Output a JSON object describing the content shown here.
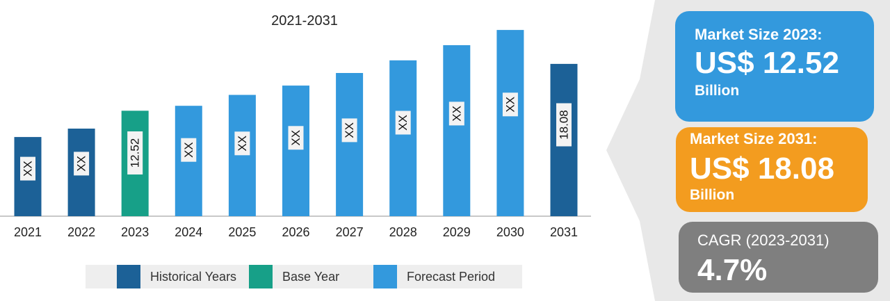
{
  "chart_data": {
    "type": "bar",
    "title": "2021-2031",
    "categories": [
      "2021",
      "2022",
      "2023",
      "2024",
      "2025",
      "2026",
      "2027",
      "2028",
      "2029",
      "2030",
      "2031"
    ],
    "values": [
      9.4,
      10.4,
      12.52,
      13.1,
      14.4,
      15.5,
      17.0,
      18.5,
      20.3,
      22.1,
      18.08
    ],
    "bar_labels": [
      "XX",
      "XX",
      "12.52",
      "XX",
      "XX",
      "XX",
      "XX",
      "XX",
      "XX",
      "XX",
      "18.08"
    ],
    "segments": [
      "Historical Years",
      "Historical Years",
      "Base Year",
      "Forecast Period",
      "Forecast Period",
      "Forecast Period",
      "Forecast Period",
      "Forecast Period",
      "Forecast Period",
      "Forecast Period",
      "Historical Years"
    ],
    "ylim": [
      0,
      25
    ],
    "grid": false,
    "legend": [
      {
        "name": "Historical Years",
        "color": "#1c6197"
      },
      {
        "name": "Base Year",
        "color": "#17a088"
      },
      {
        "name": "Forecast Period",
        "color": "#3399dd"
      }
    ],
    "legend_position": "bottom"
  },
  "cards": {
    "market_2023": {
      "label": "Market Size 2023:",
      "value": "US$ 12.52",
      "unit": "Billion",
      "color": "#3399dd"
    },
    "market_2031": {
      "label": "Market Size 2031:",
      "value": "US$ 18.08",
      "unit": "Billion",
      "color": "#f39c1f"
    },
    "cagr": {
      "label": "CAGR (2023-2031)",
      "value": "4.7%",
      "color": "#7f7f7f"
    }
  }
}
